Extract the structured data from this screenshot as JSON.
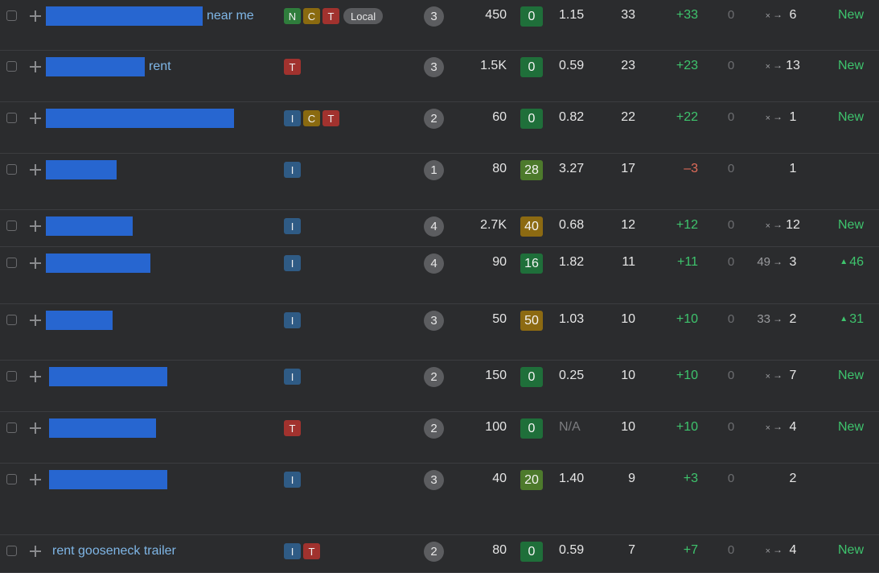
{
  "colors": {
    "background": "#2b2c2e",
    "redaction": "#2766d0",
    "positive": "#3ec46d",
    "negative": "#e06c5a",
    "kd_green_dark": "#1f6f3a",
    "kd_green": "#4d7a2c",
    "kd_gold": "#8c6a12"
  },
  "row_icons": {
    "checkbox": "checkbox-icon",
    "add": "plus-icon",
    "arrow": "arrow-right-icon",
    "up": "triangle-up-icon"
  },
  "rows": [
    {
      "keyword_suffix": "near me",
      "intents": [
        "N",
        "C",
        "T"
      ],
      "local_label": "Local",
      "position": "3",
      "volume": "450",
      "kd": "0",
      "kd_color": "#1f6f3a",
      "cpc": "1.15",
      "traffic": "33",
      "traffic_change": "+33",
      "change_color": "#3ec46d",
      "zero": "0",
      "prev_pos": "×",
      "curr_pos": "6",
      "pos_change": "New"
    },
    {
      "keyword_suffix": "rent",
      "intents": [
        "T"
      ],
      "local_label": "",
      "position": "3",
      "volume": "1.5K",
      "kd": "0",
      "kd_color": "#1f6f3a",
      "cpc": "0.59",
      "traffic": "23",
      "traffic_change": "+23",
      "change_color": "#3ec46d",
      "zero": "0",
      "prev_pos": "×",
      "curr_pos": "13",
      "pos_change": "New"
    },
    {
      "keyword_suffix": "",
      "intents": [
        "I",
        "C",
        "T"
      ],
      "local_label": "",
      "position": "2",
      "volume": "60",
      "kd": "0",
      "kd_color": "#1f6f3a",
      "cpc": "0.82",
      "traffic": "22",
      "traffic_change": "+22",
      "change_color": "#3ec46d",
      "zero": "0",
      "prev_pos": "×",
      "curr_pos": "1",
      "pos_change": "New"
    },
    {
      "keyword_suffix": "",
      "intents": [
        "I"
      ],
      "local_label": "",
      "position": "1",
      "volume": "80",
      "kd": "28",
      "kd_color": "#4d7a2c",
      "cpc": "3.27",
      "traffic": "17",
      "traffic_change": "–3",
      "change_color": "#e06c5a",
      "zero": "0",
      "prev_pos": "",
      "curr_pos": "1",
      "pos_change": ""
    },
    {
      "keyword_suffix": "",
      "intents": [
        "I"
      ],
      "local_label": "",
      "position": "4",
      "volume": "2.7K",
      "kd": "40",
      "kd_color": "#8c6a12",
      "cpc": "0.68",
      "traffic": "12",
      "traffic_change": "+12",
      "change_color": "#3ec46d",
      "zero": "0",
      "prev_pos": "×",
      "curr_pos": "12",
      "pos_change": "New"
    },
    {
      "keyword_suffix": "",
      "intents": [
        "I"
      ],
      "local_label": "",
      "position": "4",
      "volume": "90",
      "kd": "16",
      "kd_color": "#1f6f3a",
      "cpc": "1.82",
      "traffic": "11",
      "traffic_change": "+11",
      "change_color": "#3ec46d",
      "zero": "0",
      "prev_pos": "49",
      "curr_pos": "3",
      "pos_change": "46"
    },
    {
      "keyword_suffix": "",
      "intents": [
        "I"
      ],
      "local_label": "",
      "position": "3",
      "volume": "50",
      "kd": "50",
      "kd_color": "#8c6a12",
      "cpc": "1.03",
      "traffic": "10",
      "traffic_change": "+10",
      "change_color": "#3ec46d",
      "zero": "0",
      "prev_pos": "33",
      "curr_pos": "2",
      "pos_change": "31"
    },
    {
      "keyword_suffix": "",
      "intents": [
        "I"
      ],
      "local_label": "",
      "position": "2",
      "volume": "150",
      "kd": "0",
      "kd_color": "#1f6f3a",
      "cpc": "0.25",
      "traffic": "10",
      "traffic_change": "+10",
      "change_color": "#3ec46d",
      "zero": "0",
      "prev_pos": "×",
      "curr_pos": "7",
      "pos_change": "New"
    },
    {
      "keyword_suffix": "",
      "intents": [
        "T"
      ],
      "local_label": "",
      "position": "2",
      "volume": "100",
      "kd": "0",
      "kd_color": "#1f6f3a",
      "cpc": "N/A",
      "traffic": "10",
      "traffic_change": "+10",
      "change_color": "#3ec46d",
      "zero": "0",
      "prev_pos": "×",
      "curr_pos": "4",
      "pos_change": "New"
    },
    {
      "keyword_suffix": "",
      "intents": [
        "I"
      ],
      "local_label": "",
      "position": "3",
      "volume": "40",
      "kd": "20",
      "kd_color": "#4d7a2c",
      "cpc": "1.40",
      "traffic": "9",
      "traffic_change": "+3",
      "change_color": "#3ec46d",
      "zero": "0",
      "prev_pos": "",
      "curr_pos": "2",
      "pos_change": ""
    },
    {
      "keyword_suffix": "rent gooseneck trailer",
      "intents": [
        "I",
        "T"
      ],
      "local_label": "",
      "position": "2",
      "volume": "80",
      "kd": "0",
      "kd_color": "#1f6f3a",
      "cpc": "0.59",
      "traffic": "7",
      "traffic_change": "+7",
      "change_color": "#3ec46d",
      "zero": "0",
      "prev_pos": "×",
      "curr_pos": "4",
      "pos_change": "New"
    }
  ]
}
